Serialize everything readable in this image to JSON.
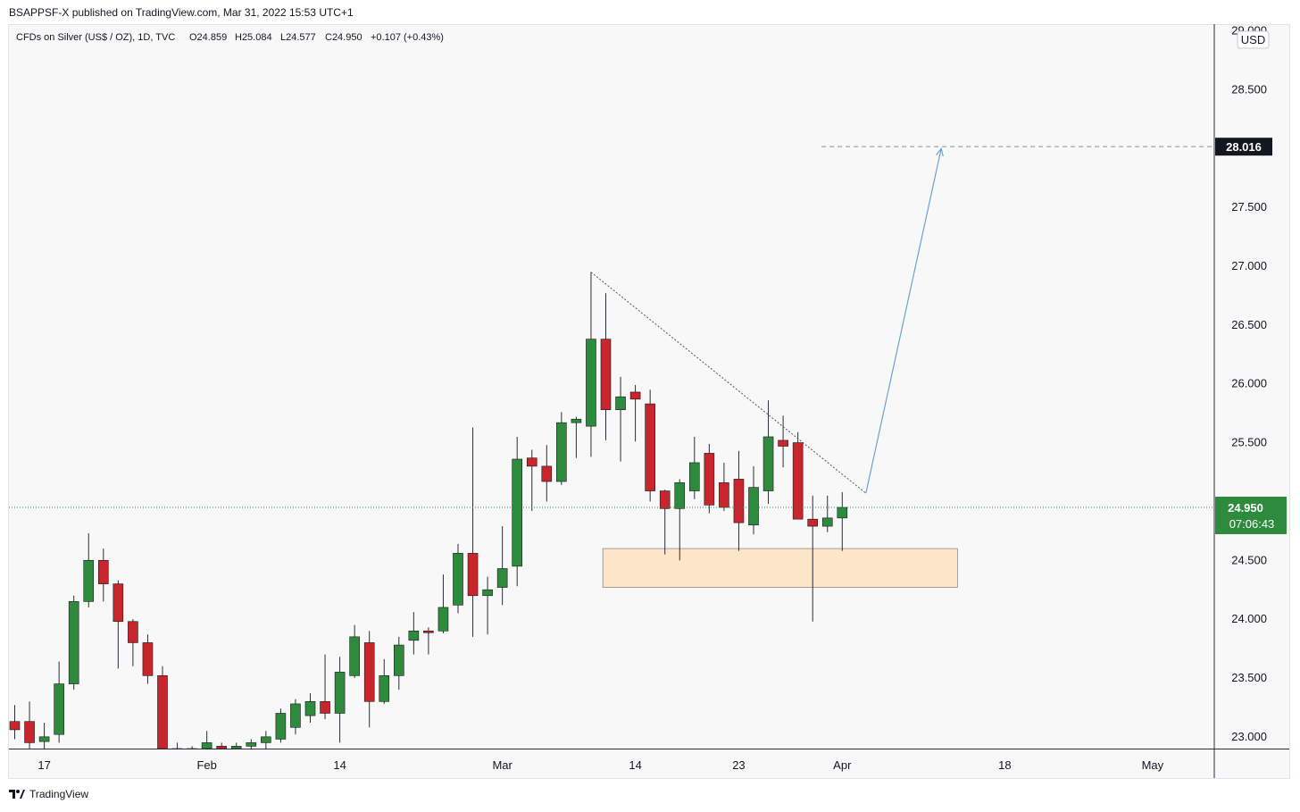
{
  "header": {
    "published_line": "BSAPPSF-X published on TradingView.com, Mar 31, 2022 15:53 UTC+1"
  },
  "legend": {
    "symbol": "CFDs on Silver (US$ / OZ), 1D, TVC",
    "open": "O24.859",
    "high": "H25.084",
    "low": "L24.577",
    "close": "C24.950",
    "change": "+0.107 (+0.43%)"
  },
  "footer": {
    "brand": "TradingView"
  },
  "chart_data": {
    "type": "candlestick",
    "currency_label": "USD",
    "ylim": [
      22.9,
      29.05
    ],
    "y_ticks": [
      "23.000",
      "23.500",
      "24.000",
      "24.500",
      "25.000",
      "25.500",
      "26.000",
      "26.500",
      "27.000",
      "27.500",
      "28.000",
      "28.500",
      "29.000"
    ],
    "x_ticks": [
      {
        "label": "17",
        "bar": 2
      },
      {
        "label": "Feb",
        "bar": 13
      },
      {
        "label": "14",
        "bar": 22
      },
      {
        "label": "Mar",
        "bar": 33
      },
      {
        "label": "14",
        "bar": 42
      },
      {
        "label": "23",
        "bar": 49
      },
      {
        "label": "Apr",
        "bar": 56
      },
      {
        "label": "18",
        "bar": 67
      },
      {
        "label": "May",
        "bar": 77
      }
    ],
    "colors": {
      "up": "#2e8b3d",
      "down": "#c8262c",
      "wick": "#2a2e39",
      "target_line": "#6a9fd8",
      "zone": "#fce5c8",
      "zone_border": "#8d8d8d"
    },
    "candles": [
      {
        "o": 23.13,
        "h": 23.27,
        "l": 22.98,
        "c": 23.06
      },
      {
        "o": 23.13,
        "h": 23.3,
        "l": 22.86,
        "c": 22.95
      },
      {
        "o": 22.96,
        "h": 23.12,
        "l": 22.88,
        "c": 23.0
      },
      {
        "o": 23.02,
        "h": 23.64,
        "l": 22.95,
        "c": 23.45
      },
      {
        "o": 23.45,
        "h": 24.2,
        "l": 23.4,
        "c": 24.15
      },
      {
        "o": 24.15,
        "h": 24.73,
        "l": 24.1,
        "c": 24.5
      },
      {
        "o": 24.5,
        "h": 24.6,
        "l": 24.15,
        "c": 24.3
      },
      {
        "o": 24.3,
        "h": 24.33,
        "l": 23.58,
        "c": 23.98
      },
      {
        "o": 23.98,
        "h": 24.0,
        "l": 23.6,
        "c": 23.8
      },
      {
        "o": 23.8,
        "h": 23.87,
        "l": 23.45,
        "c": 23.52
      },
      {
        "o": 23.52,
        "h": 23.6,
        "l": 22.8,
        "c": 22.9
      },
      {
        "o": 22.9,
        "h": 22.95,
        "l": 22.8,
        "c": 22.88
      },
      {
        "o": 22.88,
        "h": 22.92,
        "l": 22.8,
        "c": 22.9
      },
      {
        "o": 22.9,
        "h": 23.05,
        "l": 22.85,
        "c": 22.95
      },
      {
        "o": 22.92,
        "h": 22.95,
        "l": 22.85,
        "c": 22.9
      },
      {
        "o": 22.9,
        "h": 22.95,
        "l": 22.85,
        "c": 22.92
      },
      {
        "o": 22.92,
        "h": 22.98,
        "l": 22.9,
        "c": 22.95
      },
      {
        "o": 22.95,
        "h": 23.05,
        "l": 22.9,
        "c": 23.0
      },
      {
        "o": 22.98,
        "h": 23.24,
        "l": 22.95,
        "c": 23.2
      },
      {
        "o": 23.08,
        "h": 23.32,
        "l": 23.02,
        "c": 23.28
      },
      {
        "o": 23.18,
        "h": 23.37,
        "l": 23.12,
        "c": 23.3
      },
      {
        "o": 23.3,
        "h": 23.7,
        "l": 23.15,
        "c": 23.2
      },
      {
        "o": 23.2,
        "h": 23.68,
        "l": 22.95,
        "c": 23.55
      },
      {
        "o": 23.52,
        "h": 23.95,
        "l": 23.5,
        "c": 23.85
      },
      {
        "o": 23.8,
        "h": 23.9,
        "l": 23.08,
        "c": 23.3
      },
      {
        "o": 23.3,
        "h": 23.66,
        "l": 23.28,
        "c": 23.52
      },
      {
        "o": 23.52,
        "h": 23.85,
        "l": 23.4,
        "c": 23.78
      },
      {
        "o": 23.82,
        "h": 24.06,
        "l": 23.7,
        "c": 23.9
      },
      {
        "o": 23.9,
        "h": 23.93,
        "l": 23.7,
        "c": 23.89
      },
      {
        "o": 23.9,
        "h": 24.38,
        "l": 23.88,
        "c": 24.1
      },
      {
        "o": 24.12,
        "h": 24.64,
        "l": 24.05,
        "c": 24.56
      },
      {
        "o": 24.56,
        "h": 25.63,
        "l": 23.85,
        "c": 24.2
      },
      {
        "o": 24.2,
        "h": 24.36,
        "l": 23.87,
        "c": 24.25
      },
      {
        "o": 24.27,
        "h": 24.79,
        "l": 24.12,
        "c": 24.43
      },
      {
        "o": 24.45,
        "h": 25.55,
        "l": 24.28,
        "c": 25.36
      },
      {
        "o": 25.37,
        "h": 25.44,
        "l": 24.92,
        "c": 25.3
      },
      {
        "o": 25.3,
        "h": 25.48,
        "l": 25.0,
        "c": 25.17
      },
      {
        "o": 25.17,
        "h": 25.76,
        "l": 25.14,
        "c": 25.67
      },
      {
        "o": 25.67,
        "h": 25.72,
        "l": 25.37,
        "c": 25.7
      },
      {
        "o": 25.64,
        "h": 26.95,
        "l": 25.38,
        "c": 26.38
      },
      {
        "o": 26.38,
        "h": 26.77,
        "l": 25.52,
        "c": 25.78
      },
      {
        "o": 25.78,
        "h": 26.06,
        "l": 25.34,
        "c": 25.89
      },
      {
        "o": 25.93,
        "h": 25.99,
        "l": 25.51,
        "c": 25.87
      },
      {
        "o": 25.83,
        "h": 25.95,
        "l": 25.0,
        "c": 25.09
      },
      {
        "o": 25.09,
        "h": 25.1,
        "l": 24.55,
        "c": 24.94
      },
      {
        "o": 24.94,
        "h": 25.19,
        "l": 24.5,
        "c": 25.16
      },
      {
        "o": 25.09,
        "h": 25.55,
        "l": 25.02,
        "c": 25.33
      },
      {
        "o": 25.41,
        "h": 25.49,
        "l": 24.9,
        "c": 24.97
      },
      {
        "o": 25.16,
        "h": 25.33,
        "l": 24.92,
        "c": 24.95
      },
      {
        "o": 25.19,
        "h": 25.43,
        "l": 24.58,
        "c": 24.82
      },
      {
        "o": 24.8,
        "h": 25.3,
        "l": 24.72,
        "c": 25.12
      },
      {
        "o": 25.09,
        "h": 25.86,
        "l": 24.98,
        "c": 25.55
      },
      {
        "o": 25.52,
        "h": 25.73,
        "l": 25.29,
        "c": 25.47
      },
      {
        "o": 25.5,
        "h": 25.59,
        "l": 24.86,
        "c": 24.85
      },
      {
        "o": 24.85,
        "h": 25.05,
        "l": 23.98,
        "c": 24.79
      },
      {
        "o": 24.79,
        "h": 25.05,
        "l": 24.74,
        "c": 24.86
      },
      {
        "o": 24.86,
        "h": 25.08,
        "l": 24.58,
        "c": 24.95
      }
    ],
    "current_price": "24.950",
    "countdown": "07:06:43",
    "target_price": "28.016",
    "annotations": {
      "trendline": {
        "from_bar": 39,
        "from_price": 26.95,
        "to_bar": 57.6,
        "to_price": 25.07
      },
      "demand_zone": {
        "from_bar": 39.8,
        "to_bar": 63.8,
        "low": 24.27,
        "high": 24.6
      },
      "arrow": {
        "from_bar": 57.6,
        "from_price": 25.07,
        "to_bar": 62.7,
        "to_price": 28.0
      },
      "target_line_from_bar": 54.6
    }
  }
}
